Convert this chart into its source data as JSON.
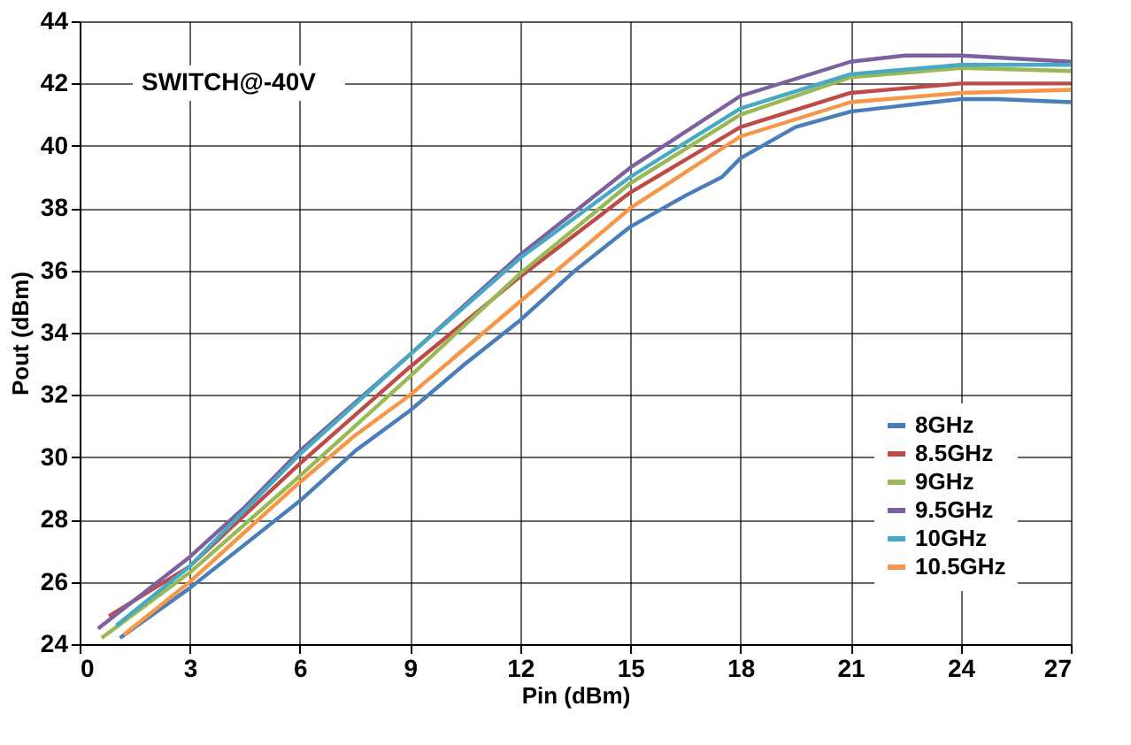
{
  "chart_data": {
    "type": "line",
    "xlabel": "Pin (dBm)",
    "ylabel": "Pout (dBm)",
    "annotations": [
      "SWITCH@-40V"
    ],
    "xlim": [
      0,
      27
    ],
    "xticks": [
      0,
      3,
      6,
      9,
      12,
      15,
      18,
      21,
      24,
      27
    ],
    "ylim": [
      24,
      44
    ],
    "yticks": [
      24,
      26,
      28,
      30,
      32,
      34,
      36,
      38,
      40,
      42,
      44
    ],
    "grid": true,
    "legend": "bottom right",
    "marker": "none",
    "line_style": "solid",
    "series": [
      {
        "name": "8GHz",
        "color": "#4a7ebb",
        "x": [
          1.1,
          3,
          4.5,
          6,
          7.5,
          9,
          10.5,
          12,
          13.5,
          15,
          16.5,
          17.5,
          18,
          19.5,
          21,
          22.5,
          24,
          25,
          27
        ],
        "values": [
          24.2,
          25.8,
          27.2,
          28.6,
          30.2,
          31.5,
          33.0,
          34.4,
          36.0,
          37.4,
          38.4,
          39.0,
          39.6,
          40.6,
          41.1,
          41.3,
          41.5,
          41.5,
          41.4
        ]
      },
      {
        "name": "8.5GHz",
        "color": "#be4b48",
        "x": [
          0.8,
          3,
          6,
          9,
          12,
          15,
          18,
          21,
          24,
          27
        ],
        "values": [
          24.9,
          26.5,
          29.8,
          32.9,
          35.8,
          38.5,
          40.6,
          41.7,
          42.0,
          42.0
        ]
      },
      {
        "name": "9GHz",
        "color": "#98b954",
        "x": [
          0.6,
          3,
          6,
          9,
          12,
          15,
          18,
          21,
          24,
          27
        ],
        "values": [
          24.2,
          26.3,
          29.4,
          32.6,
          35.9,
          38.8,
          41.0,
          42.2,
          42.5,
          42.4
        ]
      },
      {
        "name": "9.5GHz",
        "color": "#7d60a0",
        "x": [
          0.5,
          3,
          4.5,
          6,
          9,
          12,
          15,
          18,
          21,
          22.5,
          24,
          27
        ],
        "values": [
          24.5,
          26.8,
          28.4,
          30.2,
          33.3,
          36.5,
          39.3,
          41.6,
          42.7,
          42.9,
          42.9,
          42.7
        ]
      },
      {
        "name": "10GHz",
        "color": "#46aac5",
        "x": [
          1.0,
          3,
          6,
          9,
          12,
          15,
          18,
          21,
          24,
          27
        ],
        "values": [
          24.6,
          26.5,
          30.1,
          33.3,
          36.4,
          39.0,
          41.2,
          42.3,
          42.6,
          42.6
        ]
      },
      {
        "name": "10.5GHz",
        "color": "#f79646",
        "x": [
          1.2,
          3,
          6,
          7.5,
          9,
          12,
          15,
          18,
          21,
          24,
          27
        ],
        "values": [
          24.3,
          26.0,
          29.2,
          30.7,
          32.0,
          35.0,
          38.0,
          40.3,
          41.4,
          41.7,
          41.8
        ]
      }
    ]
  }
}
